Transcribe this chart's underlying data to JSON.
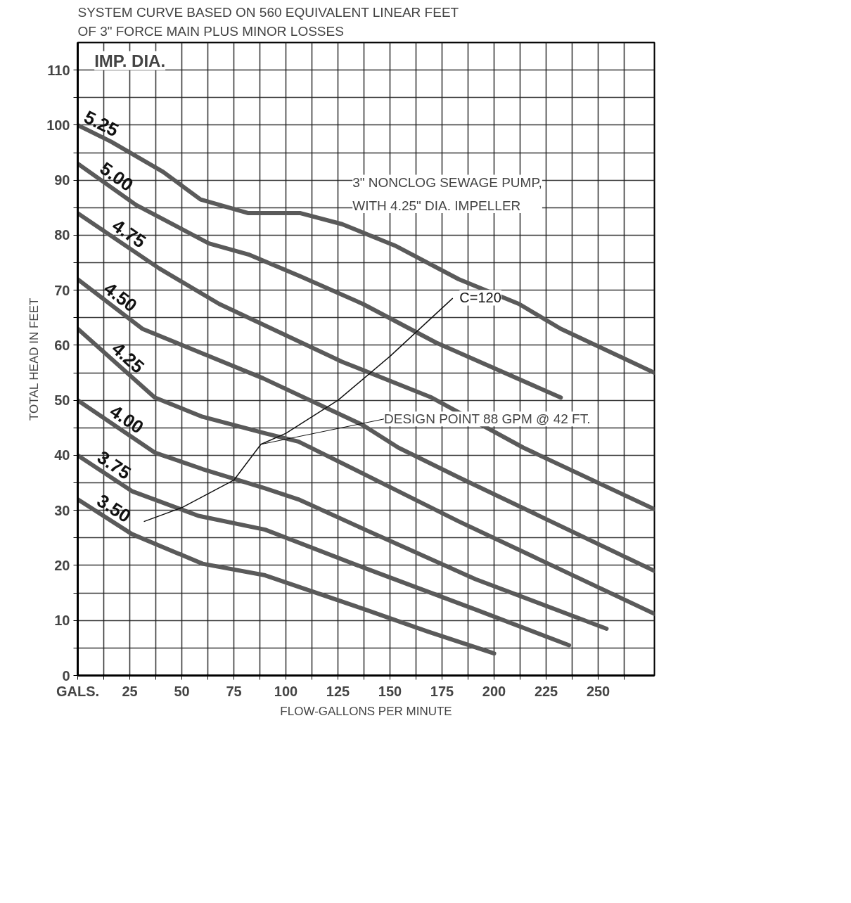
{
  "chart_data": {
    "type": "line",
    "title": "SYSTEM CURVE BASED ON 560 EQUIVALENT LINEAR FEET\nOF 3\" FORCE MAIN PLUS MINOR LOSSES",
    "xlabel": "FLOW-GALLONS PER MINUTE",
    "ylabel": "TOTAL HEAD IN FEET",
    "xlim": [
      0,
      277
    ],
    "ylim": [
      0,
      115
    ],
    "xticks": [
      {
        "value": 0,
        "label": "GALS."
      },
      {
        "value": 12.5,
        "label": null
      },
      25,
      {
        "value": 37.5,
        "label": null
      },
      50,
      {
        "value": 62.5,
        "label": null
      },
      75,
      {
        "value": 87.5,
        "label": null
      },
      100,
      {
        "value": 112.5,
        "label": null
      },
      125,
      {
        "value": 137.5,
        "label": null
      },
      150,
      {
        "value": 162.5,
        "label": null
      },
      175,
      {
        "value": 187.5,
        "label": null
      },
      200,
      {
        "value": 212.5,
        "label": null
      },
      225,
      {
        "value": 237.5,
        "label": null
      },
      250,
      {
        "value": 262.5,
        "label": null
      }
    ],
    "yticks": [
      0,
      {
        "value": 5,
        "label": null
      },
      10,
      {
        "value": 15,
        "label": null
      },
      20,
      {
        "value": 25,
        "label": null
      },
      30,
      {
        "value": 35,
        "label": null
      },
      40,
      {
        "value": 45,
        "label": null
      },
      50,
      {
        "value": 55,
        "label": null
      },
      60,
      {
        "value": 65,
        "label": null
      },
      70,
      {
        "value": 75,
        "label": null
      },
      80,
      {
        "value": 85,
        "label": null
      },
      90,
      {
        "value": 95,
        "label": null
      },
      100,
      {
        "value": 105,
        "label": null
      },
      110
    ],
    "grid": true,
    "marker": "none",
    "line_style": "solid",
    "series": [
      {
        "name": "5.25",
        "color": "#5a5a5a",
        "x": [
          0,
          16,
          41,
          59,
          82,
          107,
          127,
          153,
          183,
          212,
          232,
          277
        ],
        "values": [
          100,
          97,
          91.5,
          86.5,
          84,
          84,
          82,
          78,
          72,
          67.5,
          63,
          55
        ]
      },
      {
        "name": "5.00",
        "color": "#5a5a5a",
        "x": [
          0,
          28,
          63,
          82,
          107,
          137,
          172,
          232
        ],
        "values": [
          93,
          85.5,
          78.5,
          76.5,
          72.5,
          67.5,
          60.5,
          50.5
        ]
      },
      {
        "name": "4.75",
        "color": "#5a5a5a",
        "x": [
          0,
          39,
          68,
          127,
          170,
          214,
          277
        ],
        "values": [
          84,
          74,
          67.5,
          57,
          50.5,
          41.4,
          30.2
        ]
      },
      {
        "name": "4.50",
        "color": "#5a5a5a",
        "x": [
          0,
          31,
          89,
          137,
          154,
          183,
          277
        ],
        "values": [
          72,
          63,
          54,
          45.5,
          41.4,
          36,
          19
        ]
      },
      {
        "name": "4.25",
        "color": "#5a5a5a",
        "x": [
          0,
          37,
          60,
          90,
          106,
          138,
          183,
          277
        ],
        "values": [
          63,
          50.5,
          47,
          44,
          42.5,
          36.5,
          28,
          11.2
        ]
      },
      {
        "name": "4.00",
        "color": "#5a5a5a",
        "x": [
          0,
          37,
          60,
          90,
          106,
          138,
          191,
          254
        ],
        "values": [
          50,
          40.5,
          37.5,
          34,
          32,
          26.5,
          17.5,
          8.5
        ]
      },
      {
        "name": "3.75",
        "color": "#5a5a5a",
        "x": [
          0,
          26,
          58,
          90,
          138,
          191,
          236
        ],
        "values": [
          40,
          33.5,
          29,
          26.5,
          19.5,
          12,
          5.5
        ]
      },
      {
        "name": "3.50",
        "color": "#5a5a5a",
        "x": [
          0,
          26,
          60,
          90,
          138,
          168,
          200
        ],
        "values": [
          32,
          25.7,
          20.3,
          18.2,
          12,
          8,
          4
        ]
      },
      {
        "name": "C=120",
        "color": "#111111",
        "x": [
          32,
          50,
          75,
          88,
          100,
          125,
          150,
          180
        ],
        "values": [
          28,
          30.5,
          35.5,
          42,
          44,
          50,
          58,
          68.5
        ]
      }
    ],
    "annotations": [
      "IMP. DIA.",
      "3\" NONCLOG SEWAGE PUMP,\nWITH 4.25\" DIA. IMPELLER",
      {
        "text": "DESIGN POINT 88 GPM @ 42 FT.",
        "x": 88,
        "y": 42
      }
    ]
  }
}
